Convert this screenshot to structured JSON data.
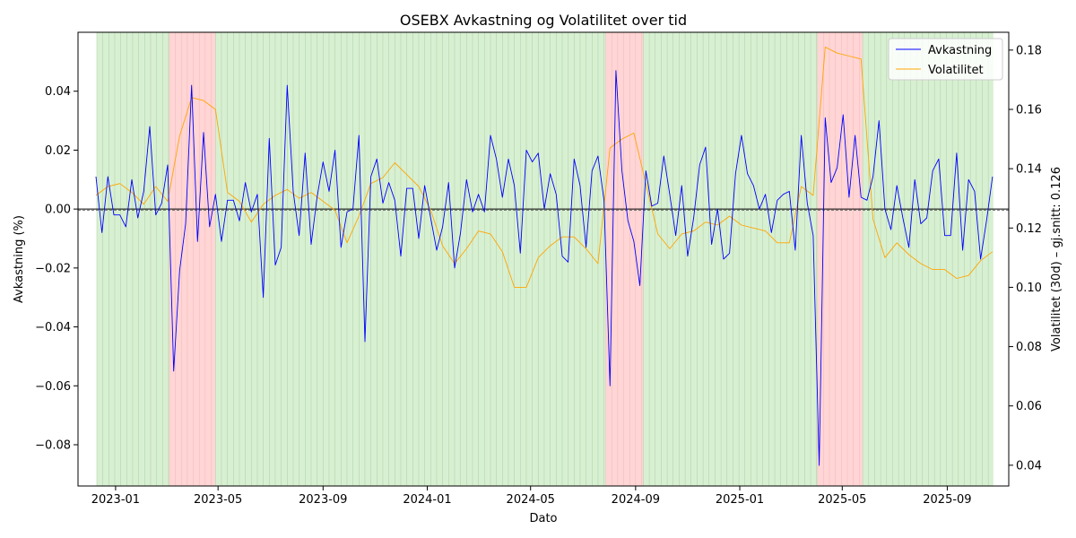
{
  "chart_data": {
    "type": "line",
    "title": "OSEBX Avkastning og Volatilitet over tid",
    "xlabel": "Dato",
    "ylabel_left": "Avkastning (%)",
    "ylabel_right": "Volatilitet (30d) – gj.snitt: 0.126",
    "x_ticks": [
      "2023-01",
      "2023-05",
      "2023-09",
      "2024-01",
      "2024-05",
      "2024-09",
      "2025-01",
      "2025-05",
      "2025-09"
    ],
    "ylim_left": [
      -0.094,
      0.06
    ],
    "yticks_left": [
      "0.04",
      "0.02",
      "0.00",
      "−0.02",
      "−0.04",
      "−0.06",
      "−0.08"
    ],
    "ylim_right": [
      0.033,
      0.186
    ],
    "yticks_right": [
      "0.18",
      "0.16",
      "0.14",
      "0.12",
      "0.10",
      "0.08",
      "0.06",
      "0.04"
    ],
    "xlim": [
      "2022-11-18",
      "2025-11-12"
    ],
    "horizontal_line_left": 0.0,
    "volatility_mean": 0.126,
    "legend_position": "top-right",
    "colors": {
      "returns": "#0000ff",
      "volatility": "#ffa500",
      "regime_normal": "#d8f0d2",
      "regime_high": "#ffd5d5",
      "regime_edge": "#88b080"
    },
    "regimes": [
      {
        "start": "2022-12-10",
        "end": "2023-03-05",
        "kind": "normal"
      },
      {
        "start": "2023-03-05",
        "end": "2023-04-28",
        "kind": "high"
      },
      {
        "start": "2023-04-28",
        "end": "2024-07-28",
        "kind": "normal"
      },
      {
        "start": "2024-07-28",
        "end": "2024-09-10",
        "kind": "high"
      },
      {
        "start": "2024-09-10",
        "end": "2025-04-02",
        "kind": "normal"
      },
      {
        "start": "2025-04-02",
        "end": "2025-05-25",
        "kind": "high"
      },
      {
        "start": "2025-05-25",
        "end": "2025-10-25",
        "kind": "normal"
      }
    ],
    "series": [
      {
        "name": "Avkastning",
        "axis": "left",
        "x": [
          "2022-12-09",
          "2022-12-16",
          "2022-12-23",
          "2022-12-30",
          "2023-01-06",
          "2023-01-13",
          "2023-01-20",
          "2023-01-27",
          "2023-02-03",
          "2023-02-10",
          "2023-02-17",
          "2023-02-24",
          "2023-03-03",
          "2023-03-10",
          "2023-03-17",
          "2023-03-24",
          "2023-03-31",
          "2023-04-07",
          "2023-04-14",
          "2023-04-21",
          "2023-04-28",
          "2023-05-05",
          "2023-05-12",
          "2023-05-19",
          "2023-05-26",
          "2023-06-02",
          "2023-06-09",
          "2023-06-16",
          "2023-06-23",
          "2023-06-30",
          "2023-07-07",
          "2023-07-14",
          "2023-07-21",
          "2023-07-28",
          "2023-08-04",
          "2023-08-11",
          "2023-08-18",
          "2023-08-25",
          "2023-09-01",
          "2023-09-08",
          "2023-09-15",
          "2023-09-22",
          "2023-09-29",
          "2023-10-06",
          "2023-10-13",
          "2023-10-20",
          "2023-10-27",
          "2023-11-03",
          "2023-11-10",
          "2023-11-17",
          "2023-11-24",
          "2023-12-01",
          "2023-12-08",
          "2023-12-15",
          "2023-12-22",
          "2023-12-29",
          "2024-01-05",
          "2024-01-12",
          "2024-01-19",
          "2024-01-26",
          "2024-02-02",
          "2024-02-09",
          "2024-02-16",
          "2024-02-23",
          "2024-03-01",
          "2024-03-08",
          "2024-03-15",
          "2024-03-22",
          "2024-03-29",
          "2024-04-05",
          "2024-04-12",
          "2024-04-19",
          "2024-04-26",
          "2024-05-03",
          "2024-05-10",
          "2024-05-17",
          "2024-05-24",
          "2024-05-31",
          "2024-06-07",
          "2024-06-14",
          "2024-06-21",
          "2024-06-28",
          "2024-07-05",
          "2024-07-12",
          "2024-07-19",
          "2024-07-26",
          "2024-08-02",
          "2024-08-09",
          "2024-08-16",
          "2024-08-23",
          "2024-08-30",
          "2024-09-06",
          "2024-09-13",
          "2024-09-20",
          "2024-09-27",
          "2024-10-04",
          "2024-10-11",
          "2024-10-18",
          "2024-10-25",
          "2024-11-01",
          "2024-11-08",
          "2024-11-15",
          "2024-11-22",
          "2024-11-29",
          "2024-12-06",
          "2024-12-13",
          "2024-12-20",
          "2024-12-27",
          "2025-01-03",
          "2025-01-10",
          "2025-01-17",
          "2025-01-24",
          "2025-01-31",
          "2025-02-07",
          "2025-02-14",
          "2025-02-21",
          "2025-02-28",
          "2025-03-07",
          "2025-03-14",
          "2025-03-21",
          "2025-03-28",
          "2025-04-04",
          "2025-04-11",
          "2025-04-18",
          "2025-04-25",
          "2025-05-02",
          "2025-05-09",
          "2025-05-16",
          "2025-05-23",
          "2025-05-30",
          "2025-06-06",
          "2025-06-13",
          "2025-06-20",
          "2025-06-27",
          "2025-07-04",
          "2025-07-11",
          "2025-07-18",
          "2025-07-25",
          "2025-08-01",
          "2025-08-08",
          "2025-08-15",
          "2025-08-22",
          "2025-08-29",
          "2025-09-05",
          "2025-09-12",
          "2025-09-19",
          "2025-09-26",
          "2025-10-03",
          "2025-10-10",
          "2025-10-17",
          "2025-10-24"
        ],
        "values": [
          0.011,
          -0.008,
          0.011,
          -0.002,
          -0.002,
          -0.006,
          0.01,
          -0.003,
          0.006,
          0.028,
          -0.002,
          0.002,
          0.015,
          -0.055,
          -0.021,
          -0.005,
          0.042,
          -0.011,
          0.026,
          -0.006,
          0.005,
          -0.011,
          0.003,
          0.003,
          -0.004,
          0.009,
          -0.001,
          0.005,
          -0.03,
          0.024,
          -0.019,
          -0.013,
          0.042,
          0.006,
          -0.009,
          0.019,
          -0.012,
          0.004,
          0.016,
          0.006,
          0.02,
          -0.013,
          -0.001,
          0.0,
          0.025,
          -0.045,
          0.011,
          0.017,
          0.002,
          0.009,
          0.003,
          -0.016,
          0.007,
          0.007,
          -0.01,
          0.008,
          -0.003,
          -0.014,
          -0.006,
          0.009,
          -0.02,
          -0.008,
          0.01,
          -0.001,
          0.005,
          -0.001,
          0.025,
          0.017,
          0.004,
          0.017,
          0.008,
          -0.015,
          0.02,
          0.016,
          0.019,
          0.0,
          0.012,
          0.005,
          -0.016,
          -0.018,
          0.017,
          0.008,
          -0.013,
          0.013,
          0.018,
          0.003,
          -0.06,
          0.047,
          0.013,
          -0.004,
          -0.011,
          -0.026,
          0.013,
          0.001,
          0.002,
          0.018,
          0.005,
          -0.009,
          0.008,
          -0.016,
          -0.003,
          0.015,
          0.021,
          -0.012,
          0.0,
          -0.017,
          -0.015,
          0.012,
          0.025,
          0.012,
          0.008,
          0.0,
          0.005,
          -0.008,
          0.003,
          0.005,
          0.006,
          -0.014,
          0.025,
          0.002,
          -0.009,
          -0.087,
          0.031,
          0.009,
          0.014,
          0.032,
          0.004,
          0.025,
          0.004,
          0.003,
          0.011,
          0.03,
          0.0,
          -0.007,
          0.008,
          -0.003,
          -0.013,
          0.01,
          -0.005,
          -0.003,
          0.013,
          0.017,
          -0.009,
          -0.009,
          0.019,
          -0.014,
          0.01,
          0.006,
          -0.017,
          -0.004,
          0.011
        ]
      },
      {
        "name": "Volatilitet",
        "axis": "right",
        "x": [
          "2022-12-09",
          "2022-12-23",
          "2023-01-06",
          "2023-01-20",
          "2023-02-03",
          "2023-02-17",
          "2023-03-03",
          "2023-03-17",
          "2023-03-31",
          "2023-04-14",
          "2023-04-28",
          "2023-05-12",
          "2023-05-26",
          "2023-06-09",
          "2023-06-23",
          "2023-07-07",
          "2023-07-21",
          "2023-08-04",
          "2023-08-18",
          "2023-09-01",
          "2023-09-15",
          "2023-09-29",
          "2023-10-13",
          "2023-10-27",
          "2023-11-10",
          "2023-11-24",
          "2023-12-08",
          "2023-12-22",
          "2024-01-05",
          "2024-01-19",
          "2024-02-02",
          "2024-02-16",
          "2024-03-01",
          "2024-03-15",
          "2024-03-29",
          "2024-04-12",
          "2024-04-26",
          "2024-05-10",
          "2024-05-24",
          "2024-06-07",
          "2024-06-21",
          "2024-07-05",
          "2024-07-19",
          "2024-08-02",
          "2024-08-16",
          "2024-08-30",
          "2024-09-13",
          "2024-09-27",
          "2024-10-11",
          "2024-10-25",
          "2024-11-08",
          "2024-11-22",
          "2024-12-06",
          "2024-12-20",
          "2025-01-03",
          "2025-01-17",
          "2025-01-31",
          "2025-02-14",
          "2025-02-28",
          "2025-03-14",
          "2025-03-28",
          "2025-04-11",
          "2025-04-25",
          "2025-05-09",
          "2025-05-23",
          "2025-06-06",
          "2025-06-20",
          "2025-07-04",
          "2025-07-18",
          "2025-08-01",
          "2025-08-15",
          "2025-08-29",
          "2025-09-12",
          "2025-09-26",
          "2025-10-10",
          "2025-10-24"
        ],
        "values": [
          0.131,
          0.134,
          0.135,
          0.132,
          0.128,
          0.134,
          0.129,
          0.151,
          0.164,
          0.163,
          0.16,
          0.132,
          0.129,
          0.122,
          0.128,
          0.131,
          0.133,
          0.13,
          0.132,
          0.129,
          0.126,
          0.115,
          0.124,
          0.135,
          0.137,
          0.142,
          0.138,
          0.134,
          0.126,
          0.114,
          0.108,
          0.113,
          0.119,
          0.118,
          0.112,
          0.1,
          0.1,
          0.11,
          0.114,
          0.117,
          0.117,
          0.113,
          0.108,
          0.147,
          0.15,
          0.152,
          0.135,
          0.118,
          0.113,
          0.118,
          0.119,
          0.122,
          0.121,
          0.124,
          0.121,
          0.12,
          0.119,
          0.115,
          0.115,
          0.134,
          0.131,
          0.181,
          0.179,
          0.178,
          0.177,
          0.123,
          0.11,
          0.115,
          0.111,
          0.108,
          0.106,
          0.106,
          0.103,
          0.104,
          0.109,
          0.112
        ]
      }
    ]
  }
}
